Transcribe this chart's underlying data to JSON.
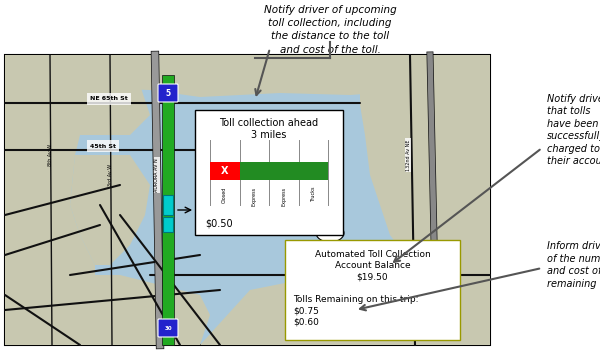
{
  "fig_width": 6.0,
  "fig_height": 3.54,
  "dpi": 100,
  "bg_color": "#ffffff",
  "map_water": "#a8c8dc",
  "map_land": "#c8c8b0",
  "map_border": "#000000",
  "top_annotation": "Notify driver of upcoming\ntoll collection, including\nthe distance to the toll\nand cost of the toll.",
  "toll_box_title": "Toll collection ahead\n3 miles",
  "toll_box_price": "$0.50",
  "account_text1": "Automated Toll Collection\nAccount Balance\n$19.50",
  "account_text2": "Tolls Remaining on this trip:\n$0.75\n$0.60",
  "right_ann1": "Notify drivers\nthat tolls\nhave been\nsuccessfully\ncharged to\ntheir account.",
  "right_ann2": "Inform driver\nof the number\nand cost of\nremaining tolls."
}
